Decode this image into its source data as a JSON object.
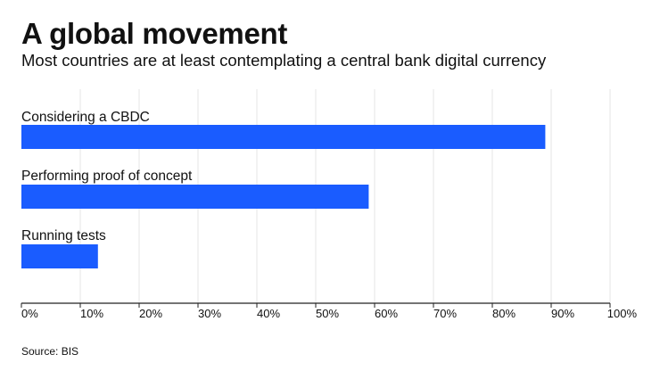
{
  "header": {
    "title": "A global movement",
    "subtitle": "Most countries are at least contemplating a central bank digital currency"
  },
  "footer": {
    "source": "Source: BIS"
  },
  "colors": {
    "bar": "#1a5cff",
    "grid": "#e6e6e6",
    "axis": "#222222"
  },
  "chart_data": {
    "type": "bar",
    "orientation": "horizontal",
    "categories": [
      "Considering a CBDC",
      "Performing proof of concept",
      "Running tests"
    ],
    "values": [
      89,
      59,
      13
    ],
    "xlim": [
      0,
      100
    ],
    "ticks": [
      0,
      10,
      20,
      30,
      40,
      50,
      60,
      70,
      80,
      90,
      100
    ],
    "tick_labels": [
      "0%",
      "10%",
      "20%",
      "30%",
      "40%",
      "50%",
      "60%",
      "70%",
      "80%",
      "90%",
      "100%"
    ],
    "grid": true,
    "legend": "none"
  }
}
